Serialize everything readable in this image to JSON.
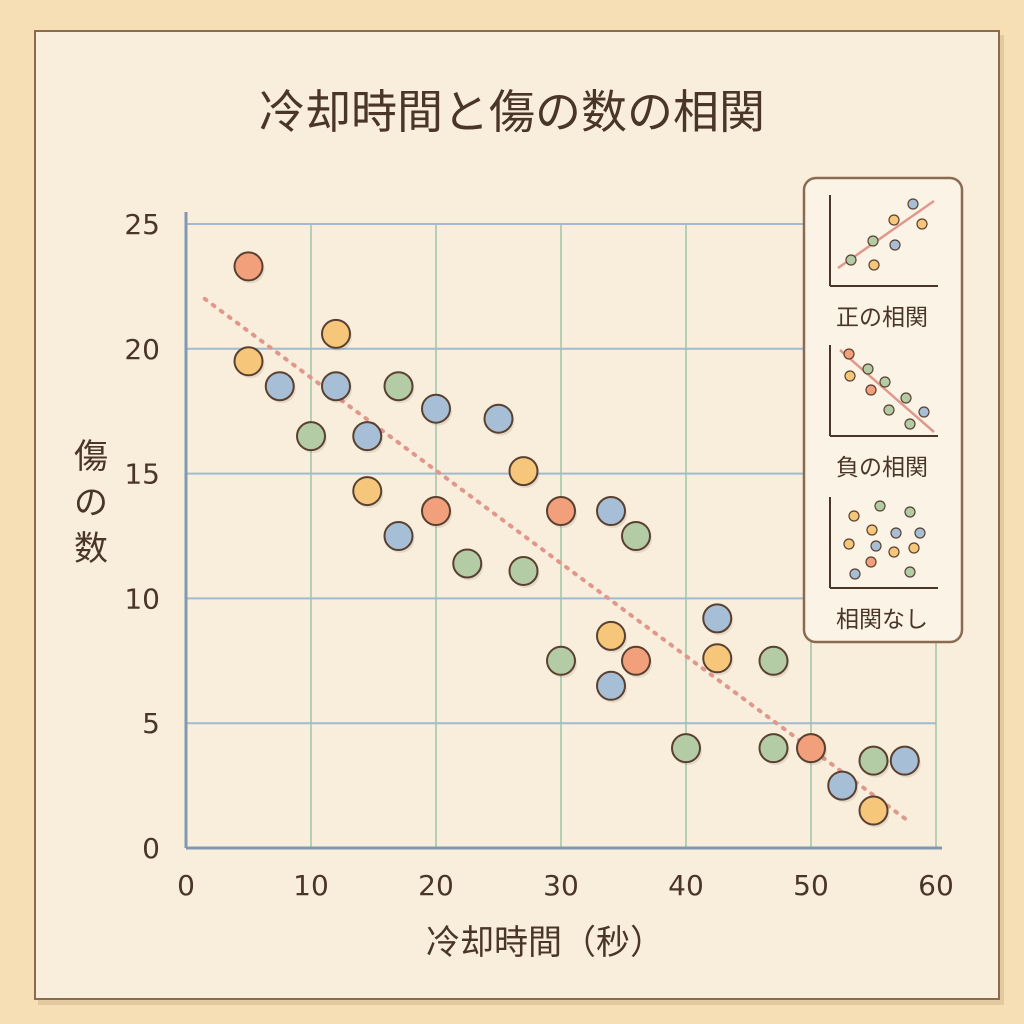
{
  "chart_data": {
    "type": "scatter",
    "title": "冷却時間と傷の数の相関",
    "xlabel": "冷却時間（秒）",
    "ylabel": "傷の数",
    "xlim": [
      0,
      60
    ],
    "ylim": [
      0,
      25
    ],
    "xticks": [
      "0",
      "10",
      "20",
      "30",
      "40",
      "50",
      "60"
    ],
    "yticks": [
      "0",
      "5",
      "10",
      "15",
      "20",
      "25"
    ],
    "grid": true,
    "trendline": {
      "style": "dotted",
      "x": [
        1.5,
        58
      ],
      "y": [
        22,
        1
      ]
    },
    "colors": {
      "orange": "#f6c77a",
      "red": "#f2a07c",
      "blue": "#a6bfd6",
      "green": "#b4cca5",
      "grid_blue": "#9fbad1",
      "grid_green": "#b4cfb4",
      "trend": "#e0988c",
      "outline": "#5a4030"
    },
    "points": [
      {
        "x": 5,
        "y": 23.3,
        "c": "red"
      },
      {
        "x": 5,
        "y": 19.5,
        "c": "orange"
      },
      {
        "x": 7.5,
        "y": 18.5,
        "c": "blue"
      },
      {
        "x": 12,
        "y": 20.6,
        "c": "orange"
      },
      {
        "x": 12,
        "y": 18.5,
        "c": "blue"
      },
      {
        "x": 17,
        "y": 18.5,
        "c": "green"
      },
      {
        "x": 10,
        "y": 16.5,
        "c": "green"
      },
      {
        "x": 14.5,
        "y": 16.5,
        "c": "blue"
      },
      {
        "x": 20,
        "y": 17.6,
        "c": "blue"
      },
      {
        "x": 25,
        "y": 17.2,
        "c": "blue"
      },
      {
        "x": 14.5,
        "y": 14.3,
        "c": "orange"
      },
      {
        "x": 20,
        "y": 13.5,
        "c": "red"
      },
      {
        "x": 17,
        "y": 12.5,
        "c": "blue"
      },
      {
        "x": 27,
        "y": 15.1,
        "c": "orange"
      },
      {
        "x": 30,
        "y": 13.5,
        "c": "red"
      },
      {
        "x": 34,
        "y": 13.5,
        "c": "blue"
      },
      {
        "x": 36,
        "y": 12.5,
        "c": "green"
      },
      {
        "x": 22.5,
        "y": 11.4,
        "c": "green"
      },
      {
        "x": 27,
        "y": 11.1,
        "c": "green"
      },
      {
        "x": 30,
        "y": 7.5,
        "c": "green"
      },
      {
        "x": 34,
        "y": 8.5,
        "c": "orange"
      },
      {
        "x": 36,
        "y": 7.5,
        "c": "red"
      },
      {
        "x": 34,
        "y": 6.5,
        "c": "blue"
      },
      {
        "x": 42.5,
        "y": 9.2,
        "c": "blue"
      },
      {
        "x": 42.5,
        "y": 7.6,
        "c": "orange"
      },
      {
        "x": 47,
        "y": 7.5,
        "c": "green"
      },
      {
        "x": 40,
        "y": 4,
        "c": "green"
      },
      {
        "x": 47,
        "y": 4,
        "c": "green"
      },
      {
        "x": 50,
        "y": 4,
        "c": "red"
      },
      {
        "x": 52.5,
        "y": 2.5,
        "c": "blue"
      },
      {
        "x": 55,
        "y": 3.5,
        "c": "green"
      },
      {
        "x": 57.5,
        "y": 3.5,
        "c": "blue"
      },
      {
        "x": 55,
        "y": 1.5,
        "c": "orange"
      }
    ]
  },
  "legend": {
    "placement": "top-right",
    "items": [
      {
        "label": "正の相関",
        "kind": "positive"
      },
      {
        "label": "負の相関",
        "kind": "negative"
      },
      {
        "label": "相関なし",
        "kind": "none"
      }
    ]
  }
}
